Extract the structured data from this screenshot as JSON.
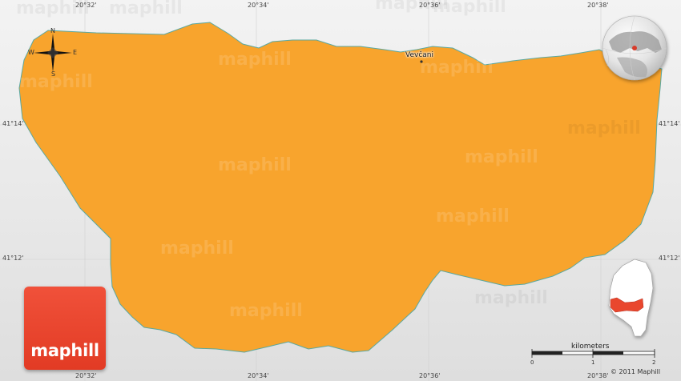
{
  "map": {
    "region_fill": "#f8a42d",
    "region_border": "#5aa8a0",
    "background": "#e8e8e8",
    "region_name": "Vevcani"
  },
  "place_label": "Vevčani",
  "longitude_labels": [
    "20°32'",
    "20°34'",
    "20°36'",
    "20°38'"
  ],
  "latitude_labels": [
    "41°14'",
    "41°12'"
  ],
  "compass": {
    "north": "N",
    "south": "S",
    "east": "E",
    "west": "W"
  },
  "logo_text": "maphill",
  "watermark_text": "maphill",
  "scale": {
    "title": "kilometers",
    "ticks": [
      "0",
      "1",
      "2"
    ]
  },
  "copyright": "© 2011 Maphill",
  "inset_globe_icon": "globe-locator-icon",
  "inset_locator_icon": "country-locator-icon"
}
